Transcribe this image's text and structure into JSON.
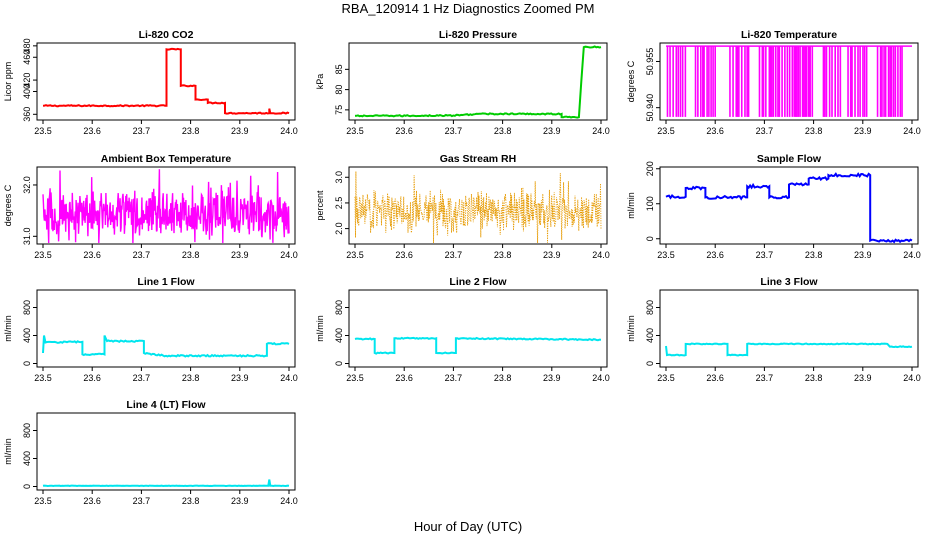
{
  "figure": {
    "title": "RBA_120914  1 Hz Diagnostics Zoomed PM",
    "xlabel": "Hour of Day (UTC)"
  },
  "chart_data": [
    {
      "id": "co2",
      "type": "line",
      "title": "Li-820 CO2",
      "ylabel": "Licor ppm",
      "xlim": [
        23.5,
        24.0
      ],
      "ylim": [
        350,
        485
      ],
      "x_ticks": [
        23.5,
        23.6,
        23.7,
        23.8,
        23.9,
        24.0
      ],
      "y_ticks": [
        360,
        400,
        420,
        460,
        480
      ],
      "color": "#ff0000",
      "noise": 1,
      "series": [
        {
          "x": 23.5,
          "y": 375
        },
        {
          "x": 23.751,
          "y": 375
        },
        {
          "x": 23.751,
          "y": 474
        },
        {
          "x": 23.78,
          "y": 474
        },
        {
          "x": 23.78,
          "y": 410
        },
        {
          "x": 23.81,
          "y": 410
        },
        {
          "x": 23.81,
          "y": 386
        },
        {
          "x": 23.835,
          "y": 386
        },
        {
          "x": 23.835,
          "y": 380
        },
        {
          "x": 23.87,
          "y": 380
        },
        {
          "x": 23.87,
          "y": 362
        },
        {
          "x": 23.96,
          "y": 362
        },
        {
          "x": 23.96,
          "y": 370
        },
        {
          "x": 23.962,
          "y": 362
        },
        {
          "x": 24.0,
          "y": 362
        }
      ]
    },
    {
      "id": "pressure",
      "type": "line",
      "title": "Li-820 Pressure",
      "ylabel": "kPa",
      "xlim": [
        23.5,
        24.0
      ],
      "ylim": [
        72.5,
        91.5
      ],
      "x_ticks": [
        23.5,
        23.6,
        23.7,
        23.8,
        23.9,
        24.0
      ],
      "y_ticks": [
        75,
        80,
        85
      ],
      "color": "#00cc00",
      "noise": 0.15,
      "series": [
        {
          "x": 23.5,
          "y": 73.5
        },
        {
          "x": 23.7,
          "y": 73.6
        },
        {
          "x": 23.75,
          "y": 74.0
        },
        {
          "x": 23.92,
          "y": 74.0
        },
        {
          "x": 23.92,
          "y": 73.2
        },
        {
          "x": 23.955,
          "y": 73.2
        },
        {
          "x": 23.96,
          "y": 82
        },
        {
          "x": 23.965,
          "y": 90.5
        },
        {
          "x": 24.0,
          "y": 90.5
        }
      ]
    },
    {
      "id": "temperature",
      "type": "spikes",
      "title": "Li-820 Temperature",
      "ylabel": "degrees C",
      "xlim": [
        23.5,
        24.0
      ],
      "ylim": [
        50.936,
        50.961
      ],
      "x_ticks": [
        23.5,
        23.6,
        23.7,
        23.8,
        23.9,
        24.0
      ],
      "y_ticks": [
        50.94,
        50.955
      ],
      "y_tick_labels": [
        "50.940",
        "50.955"
      ],
      "color": "#ff00ff",
      "high": 50.96,
      "low": 50.937,
      "spike_ranges": [
        [
          23.503,
          23.545
        ],
        [
          23.56,
          23.605
        ],
        [
          23.63,
          23.67
        ],
        [
          23.69,
          23.705
        ],
        [
          23.71,
          23.8
        ],
        [
          23.82,
          23.855
        ],
        [
          23.87,
          23.91
        ],
        [
          23.93,
          23.985
        ]
      ]
    },
    {
      "id": "ambient",
      "type": "noise",
      "title": "Ambient Box Temperature",
      "ylabel": "degrees C",
      "xlim": [
        23.5,
        24.0
      ],
      "ylim": [
        30.85,
        32.35
      ],
      "x_ticks": [
        23.5,
        23.6,
        23.7,
        23.8,
        23.9,
        24.0
      ],
      "y_ticks": [
        31.0,
        32.0
      ],
      "y_tick_labels": [
        "31.0",
        "32.0"
      ],
      "color": "#ff00ff",
      "center": 31.45,
      "spread": 0.5
    },
    {
      "id": "rh",
      "type": "noise-dots",
      "title": "Gas Stream RH",
      "ylabel": "percent",
      "xlim": [
        23.5,
        24.0
      ],
      "ylim": [
        1.7,
        3.2
      ],
      "x_ticks": [
        23.5,
        23.6,
        23.7,
        23.8,
        23.9,
        24.0
      ],
      "y_ticks": [
        2.0,
        2.5,
        3.0
      ],
      "y_tick_labels": [
        "2.0",
        "2.5",
        "3.0"
      ],
      "color": "#e69a00",
      "center": 2.35,
      "spread": 0.45
    },
    {
      "id": "sample_flow",
      "type": "line",
      "title": "Sample Flow",
      "ylabel": "ml/min",
      "xlim": [
        23.5,
        24.0
      ],
      "ylim": [
        -15,
        205
      ],
      "x_ticks": [
        23.5,
        23.6,
        23.7,
        23.8,
        23.9,
        24.0
      ],
      "y_ticks": [
        0,
        100,
        200
      ],
      "color": "#0000ff",
      "noise": 4,
      "series": [
        {
          "x": 23.5,
          "y": 120
        },
        {
          "x": 23.54,
          "y": 120
        },
        {
          "x": 23.54,
          "y": 145
        },
        {
          "x": 23.58,
          "y": 145
        },
        {
          "x": 23.58,
          "y": 118
        },
        {
          "x": 23.665,
          "y": 118
        },
        {
          "x": 23.665,
          "y": 150
        },
        {
          "x": 23.71,
          "y": 150
        },
        {
          "x": 23.71,
          "y": 118
        },
        {
          "x": 23.75,
          "y": 118
        },
        {
          "x": 23.75,
          "y": 155
        },
        {
          "x": 23.79,
          "y": 155
        },
        {
          "x": 23.79,
          "y": 172
        },
        {
          "x": 23.83,
          "y": 172
        },
        {
          "x": 23.83,
          "y": 182
        },
        {
          "x": 23.915,
          "y": 182
        },
        {
          "x": 23.915,
          "y": -5
        },
        {
          "x": 24.0,
          "y": -5
        }
      ]
    },
    {
      "id": "line1",
      "type": "line",
      "title": "Line 1 Flow",
      "ylabel": "ml/min",
      "xlim": [
        23.5,
        24.0
      ],
      "ylim": [
        -50,
        1050
      ],
      "x_ticks": [
        23.5,
        23.6,
        23.7,
        23.8,
        23.9,
        24.0
      ],
      "y_ticks": [
        0,
        400,
        800
      ],
      "color": "#00e5ee",
      "noise": 10,
      "series": [
        {
          "x": 23.5,
          "y": 150
        },
        {
          "x": 23.502,
          "y": 400
        },
        {
          "x": 23.505,
          "y": 300
        },
        {
          "x": 23.58,
          "y": 310
        },
        {
          "x": 23.58,
          "y": 130
        },
        {
          "x": 23.625,
          "y": 130
        },
        {
          "x": 23.625,
          "y": 400
        },
        {
          "x": 23.63,
          "y": 320
        },
        {
          "x": 23.705,
          "y": 320
        },
        {
          "x": 23.705,
          "y": 150
        },
        {
          "x": 23.75,
          "y": 110
        },
        {
          "x": 23.955,
          "y": 110
        },
        {
          "x": 23.955,
          "y": 280
        },
        {
          "x": 24.0,
          "y": 280
        }
      ]
    },
    {
      "id": "line2",
      "type": "line",
      "title": "Line 2 Flow",
      "ylabel": "ml/min",
      "xlim": [
        23.5,
        24.0
      ],
      "ylim": [
        -50,
        1050
      ],
      "x_ticks": [
        23.5,
        23.6,
        23.7,
        23.8,
        23.9,
        24.0
      ],
      "y_ticks": [
        0,
        400,
        800
      ],
      "color": "#00e5ee",
      "noise": 8,
      "series": [
        {
          "x": 23.5,
          "y": 350
        },
        {
          "x": 23.54,
          "y": 350
        },
        {
          "x": 23.54,
          "y": 150
        },
        {
          "x": 23.58,
          "y": 150
        },
        {
          "x": 23.58,
          "y": 360
        },
        {
          "x": 23.665,
          "y": 360
        },
        {
          "x": 23.665,
          "y": 150
        },
        {
          "x": 23.705,
          "y": 150
        },
        {
          "x": 23.705,
          "y": 360
        },
        {
          "x": 24.0,
          "y": 340
        }
      ]
    },
    {
      "id": "line3",
      "type": "line",
      "title": "Line 3 Flow",
      "ylabel": "ml/min",
      "xlim": [
        23.5,
        24.0
      ],
      "ylim": [
        -50,
        1050
      ],
      "x_ticks": [
        23.5,
        23.6,
        23.7,
        23.8,
        23.9,
        24.0
      ],
      "y_ticks": [
        0,
        400,
        800
      ],
      "color": "#00e5ee",
      "noise": 6,
      "series": [
        {
          "x": 23.5,
          "y": 250
        },
        {
          "x": 23.502,
          "y": 120
        },
        {
          "x": 23.54,
          "y": 120
        },
        {
          "x": 23.54,
          "y": 280
        },
        {
          "x": 23.625,
          "y": 280
        },
        {
          "x": 23.625,
          "y": 120
        },
        {
          "x": 23.665,
          "y": 120
        },
        {
          "x": 23.665,
          "y": 280
        },
        {
          "x": 23.95,
          "y": 280
        },
        {
          "x": 23.955,
          "y": 240
        },
        {
          "x": 24.0,
          "y": 240
        }
      ]
    },
    {
      "id": "line4",
      "type": "line",
      "title": "Line 4 (LT) Flow",
      "ylabel": "ml/min",
      "xlim": [
        23.5,
        24.0
      ],
      "ylim": [
        -50,
        1050
      ],
      "x_ticks": [
        23.5,
        23.6,
        23.7,
        23.8,
        23.9,
        24.0
      ],
      "y_ticks": [
        0,
        400,
        800
      ],
      "color": "#00e5ee",
      "noise": 3,
      "series": [
        {
          "x": 23.5,
          "y": 10
        },
        {
          "x": 23.958,
          "y": 10
        },
        {
          "x": 23.96,
          "y": 100
        },
        {
          "x": 23.962,
          "y": 10
        },
        {
          "x": 24.0,
          "y": 10
        }
      ]
    }
  ]
}
